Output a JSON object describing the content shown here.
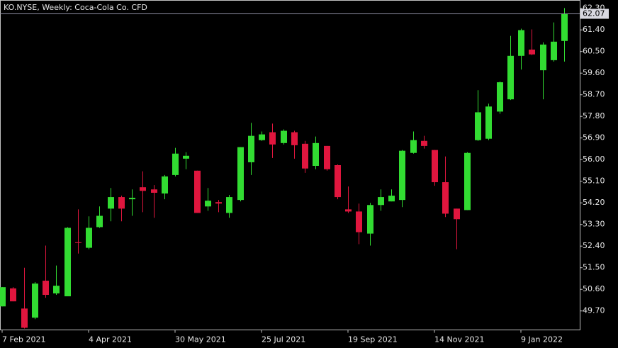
{
  "chart_data": {
    "type": "candlestick",
    "title": "KO.NYSE, Weekly:  Coca-Cola Co. CFD",
    "categories": [
      "7 Feb 2021",
      null,
      null,
      null,
      null,
      null,
      null,
      null,
      "4 Apr 2021",
      null,
      null,
      null,
      null,
      null,
      null,
      null,
      "30 May 2021",
      null,
      null,
      null,
      null,
      null,
      null,
      null,
      "25 Jul 2021",
      null,
      null,
      null,
      null,
      null,
      null,
      null,
      "19 Sep 2021",
      null,
      null,
      null,
      null,
      null,
      null,
      null,
      "14 Nov 2021",
      null,
      null,
      null,
      null,
      null,
      null,
      null,
      "9 Jan 2022",
      null,
      null,
      null,
      null
    ],
    "open": [
      49.89,
      50.64,
      49.8,
      49.42,
      50.96,
      50.43,
      50.31,
      52.56,
      52.33,
      53.19,
      53.96,
      54.44,
      54.35,
      54.85,
      54.76,
      54.59,
      55.36,
      56.04,
      55.54,
      54.05,
      54.23,
      53.78,
      54.32,
      55.89,
      56.81,
      57.14,
      56.69,
      57.14,
      56.66,
      55.74,
      56.57,
      55.77,
      53.93,
      53.84,
      52.92,
      54.11,
      54.26,
      54.32,
      56.28,
      56.78,
      56.4,
      55.06,
      53.96,
      53.9,
      56.81,
      56.87,
      58.0,
      58.51,
      60.32,
      60.58,
      59.72,
      60.14,
      60.94
    ],
    "high": [
      50.69,
      50.69,
      51.5,
      50.9,
      52.42,
      51.59,
      53.19,
      53.93,
      53.64,
      54.05,
      54.82,
      54.5,
      54.76,
      55.51,
      54.94,
      55.36,
      56.49,
      56.31,
      55.54,
      54.82,
      54.32,
      54.53,
      56.52,
      57.53,
      57.17,
      57.5,
      57.26,
      57.2,
      56.78,
      56.96,
      56.57,
      55.8,
      54.88,
      54.17,
      54.2,
      54.76,
      54.76,
      56.4,
      57.17,
      56.99,
      56.4,
      56.13,
      53.96,
      56.31,
      58.89,
      58.33,
      59.25,
      61.15,
      61.45,
      61.42,
      60.88,
      61.71,
      62.31
    ],
    "low": [
      49.89,
      50.1,
      48.97,
      49.36,
      50.25,
      50.37,
      50.31,
      52.09,
      52.27,
      53.16,
      53.43,
      53.43,
      53.66,
      53.81,
      53.58,
      54.35,
      55.3,
      55.6,
      53.78,
      53.87,
      53.81,
      53.58,
      54.26,
      55.36,
      56.78,
      56.07,
      56.63,
      56.04,
      55.45,
      55.6,
      55.54,
      54.35,
      53.78,
      52.48,
      52.42,
      53.87,
      54.26,
      54.02,
      56.25,
      56.46,
      54.91,
      53.61,
      52.27,
      53.9,
      56.78,
      56.81,
      57.91,
      58.48,
      59.75,
      60.35,
      58.51,
      60.08,
      60.08
    ],
    "close": [
      50.69,
      50.1,
      49.0,
      50.84,
      50.37,
      50.75,
      53.16,
      52.54,
      53.16,
      53.66,
      54.44,
      53.96,
      54.41,
      54.7,
      54.62,
      55.3,
      56.25,
      56.16,
      53.78,
      54.29,
      54.17,
      54.44,
      56.52,
      56.99,
      57.05,
      56.63,
      57.2,
      56.6,
      55.63,
      56.69,
      55.6,
      54.44,
      53.84,
      52.98,
      54.11,
      54.44,
      54.5,
      56.37,
      56.81,
      56.57,
      55.06,
      53.75,
      53.52,
      56.28,
      57.97,
      58.21,
      59.22,
      60.32,
      61.39,
      60.38,
      60.79,
      60.91,
      62.07
    ],
    "up_color": "#32dc32",
    "down_color": "#e0163e",
    "ylim": [
      48.91,
      62.63
    ],
    "yticks": [
      {
        "value": 49.7,
        "label": "49.70"
      },
      {
        "value": 50.6,
        "label": "50.60"
      },
      {
        "value": 51.5,
        "label": "51.50"
      },
      {
        "value": 52.4,
        "label": "52.40"
      },
      {
        "value": 53.3,
        "label": "53.30"
      },
      {
        "value": 54.2,
        "label": "54.20"
      },
      {
        "value": 55.1,
        "label": "55.10"
      },
      {
        "value": 56.0,
        "label": "56.00"
      },
      {
        "value": 56.9,
        "label": "56.90"
      },
      {
        "value": 57.8,
        "label": "57.80"
      },
      {
        "value": 58.7,
        "label": "58.70"
      },
      {
        "value": 59.6,
        "label": "59.60"
      },
      {
        "value": 60.5,
        "label": "60.50"
      },
      {
        "value": 61.4,
        "label": "61.40"
      },
      {
        "value": 62.3,
        "label": "62.30"
      }
    ],
    "grid": false
  }
}
